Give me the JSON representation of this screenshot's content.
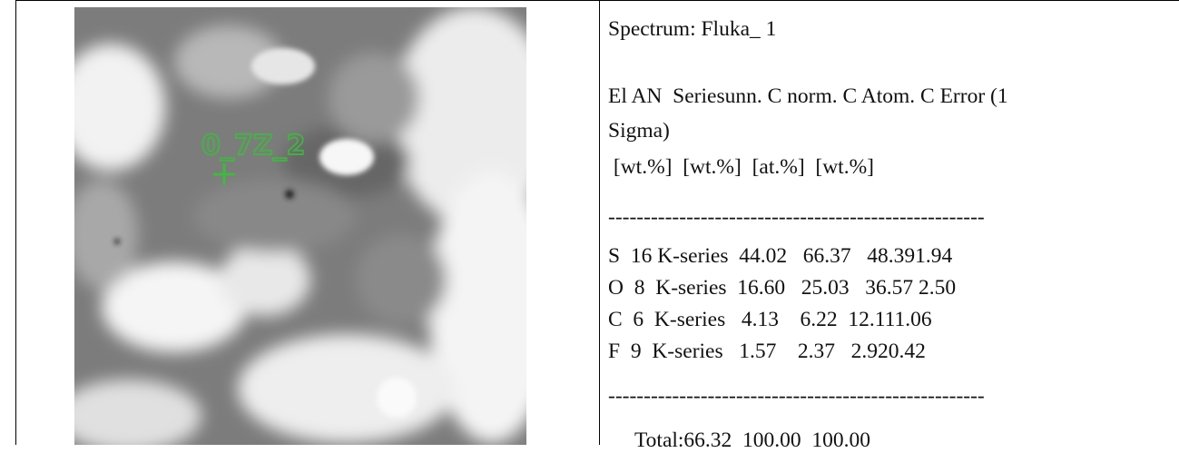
{
  "image": {
    "label": "0_7Z_2"
  },
  "text": {
    "spectrum": "Spectrum: Fluka_ 1",
    "header": [
      "El AN  Seriesunn. C norm. C Atom. C Error (1",
      "Sigma)",
      " [wt.%]  [wt.%]  [at.%]  [wt.%]"
    ],
    "separators": [
      "-----------------------------------------------------",
      "-----------------------------------------------------"
    ],
    "rows": [
      "S  16 K-series  44.02   66.37   48.391.94",
      "O  8  K-series  16.60   25.03   36.57 2.50",
      "C  6  K-series   4.13    6.22  12.111.06",
      "F  9  K-series   1.57    2.37   2.920.42"
    ],
    "total": "     Total:66.32  100.00  100.00"
  }
}
